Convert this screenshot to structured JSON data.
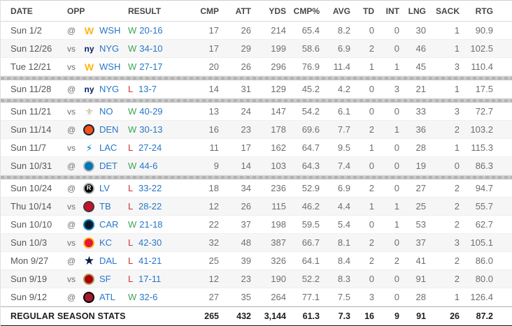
{
  "colors": {
    "link": "#2677c8",
    "win": "#3fa45c",
    "loss": "#cf3337",
    "alt_row": "#f6f6f6",
    "separator": "#b3b3b3"
  },
  "table": {
    "columns": [
      {
        "key": "date",
        "label": "DATE"
      },
      {
        "key": "opp",
        "label": "OPP"
      },
      {
        "key": "result",
        "label": "RESULT"
      },
      {
        "key": "cmp",
        "label": "CMP"
      },
      {
        "key": "att",
        "label": "ATT"
      },
      {
        "key": "yds",
        "label": "YDS"
      },
      {
        "key": "cmppct",
        "label": "CMP%"
      },
      {
        "key": "avg",
        "label": "AVG"
      },
      {
        "key": "td",
        "label": "TD"
      },
      {
        "key": "int",
        "label": "INT"
      },
      {
        "key": "lng",
        "label": "LNG"
      },
      {
        "key": "sack",
        "label": "SACK"
      },
      {
        "key": "rtg",
        "label": "RTG"
      }
    ],
    "sections": [
      {
        "rows": [
          {
            "date": "Sun 1/2",
            "at_vs": "@",
            "team": "WSH",
            "logo": {
              "glyph": "W",
              "fg": "#FFB612"
            },
            "result": "W",
            "score": "20-16",
            "stats": [
              "17",
              "26",
              "214",
              "65.4",
              "8.2",
              "0",
              "0",
              "30",
              "1",
              "90.9"
            ]
          },
          {
            "date": "Sun 12/26",
            "at_vs": "vs",
            "team": "NYG",
            "logo": {
              "glyph": "ny",
              "fg": "#0B2265"
            },
            "result": "W",
            "score": "34-10",
            "stats": [
              "17",
              "29",
              "199",
              "58.6",
              "6.9",
              "2",
              "0",
              "46",
              "1",
              "102.5"
            ]
          },
          {
            "date": "Tue 12/21",
            "at_vs": "vs",
            "team": "WSH",
            "logo": {
              "glyph": "W",
              "fg": "#FFB612"
            },
            "result": "W",
            "score": "27-17",
            "stats": [
              "20",
              "26",
              "296",
              "76.9",
              "11.4",
              "1",
              "1",
              "45",
              "3",
              "110.4"
            ]
          }
        ]
      },
      {
        "rows": [
          {
            "date": "Sun 11/28",
            "at_vs": "@",
            "team": "NYG",
            "logo": {
              "glyph": "ny",
              "fg": "#0B2265"
            },
            "result": "L",
            "score": "13-7",
            "stats": [
              "14",
              "31",
              "129",
              "45.2",
              "4.2",
              "0",
              "3",
              "21",
              "1",
              "17.5"
            ]
          }
        ]
      },
      {
        "rows": [
          {
            "date": "Sun 11/21",
            "at_vs": "vs",
            "team": "NO",
            "logo": {
              "glyph": "⚜",
              "fg": "#C8B47E"
            },
            "result": "W",
            "score": "40-29",
            "stats": [
              "13",
              "24",
              "147",
              "54.2",
              "6.1",
              "0",
              "0",
              "33",
              "3",
              "72.7"
            ]
          },
          {
            "date": "Sun 11/14",
            "at_vs": "@",
            "team": "DEN",
            "logo": {
              "bg": "#FB4F14",
              "border": "#0A2343"
            },
            "result": "W",
            "score": "30-13",
            "stats": [
              "16",
              "23",
              "178",
              "69.6",
              "7.7",
              "2",
              "1",
              "36",
              "2",
              "103.2"
            ]
          },
          {
            "date": "Sun 11/7",
            "at_vs": "vs",
            "team": "LAC",
            "logo": {
              "glyph": "⚡",
              "fg": "#0080C6"
            },
            "result": "L",
            "score": "27-24",
            "stats": [
              "11",
              "17",
              "162",
              "64.7",
              "9.5",
              "1",
              "0",
              "28",
              "1",
              "115.3"
            ]
          },
          {
            "date": "Sun 10/31",
            "at_vs": "@",
            "team": "DET",
            "logo": {
              "bg": "#0076B6",
              "border": "#B0B7BC"
            },
            "result": "W",
            "score": "44-6",
            "stats": [
              "9",
              "14",
              "103",
              "64.3",
              "7.4",
              "0",
              "0",
              "19",
              "0",
              "86.3"
            ]
          }
        ]
      },
      {
        "rows": [
          {
            "date": "Sun 10/24",
            "at_vs": "@",
            "team": "LV",
            "logo": {
              "bg": "#000000",
              "border": "#A5ACAF",
              "glyph": "R"
            },
            "result": "L",
            "score": "33-22",
            "stats": [
              "18",
              "34",
              "236",
              "52.9",
              "6.9",
              "2",
              "0",
              "27",
              "2",
              "94.7"
            ]
          },
          {
            "date": "Thu 10/14",
            "at_vs": "vs",
            "team": "TB",
            "logo": {
              "bg": "#C8102E",
              "border": "#3E3A35"
            },
            "result": "L",
            "score": "28-22",
            "stats": [
              "12",
              "26",
              "115",
              "46.2",
              "4.4",
              "1",
              "1",
              "25",
              "2",
              "55.7"
            ]
          },
          {
            "date": "Sun 10/10",
            "at_vs": "@",
            "team": "CAR",
            "logo": {
              "bg": "#101820",
              "border": "#0085CA"
            },
            "result": "W",
            "score": "21-18",
            "stats": [
              "22",
              "37",
              "198",
              "59.5",
              "5.4",
              "0",
              "1",
              "53",
              "2",
              "62.7"
            ]
          },
          {
            "date": "Sun 10/3",
            "at_vs": "vs",
            "team": "KC",
            "logo": {
              "bg": "#E31837",
              "border": "#FFB81C"
            },
            "result": "L",
            "score": "42-30",
            "stats": [
              "32",
              "48",
              "387",
              "66.7",
              "8.1",
              "2",
              "0",
              "37",
              "3",
              "105.1"
            ]
          },
          {
            "date": "Mon 9/27",
            "at_vs": "@",
            "team": "DAL",
            "logo": {
              "glyph": "★",
              "fg": "#041E42"
            },
            "result": "L",
            "score": "41-21",
            "stats": [
              "25",
              "39",
              "326",
              "64.1",
              "8.4",
              "2",
              "2",
              "41",
              "2",
              "86.0"
            ]
          },
          {
            "date": "Sun 9/19",
            "at_vs": "vs",
            "team": "SF",
            "logo": {
              "bg": "#AA0000",
              "border": "#B3995D"
            },
            "result": "L",
            "score": "17-11",
            "stats": [
              "12",
              "23",
              "190",
              "52.2",
              "8.3",
              "0",
              "0",
              "91",
              "2",
              "80.0"
            ]
          },
          {
            "date": "Sun 9/12",
            "at_vs": "@",
            "team": "ATL",
            "logo": {
              "bg": "#A71930",
              "border": "#000000"
            },
            "result": "W",
            "score": "32-6",
            "stats": [
              "27",
              "35",
              "264",
              "77.1",
              "7.5",
              "3",
              "0",
              "28",
              "1",
              "126.4"
            ]
          }
        ]
      }
    ],
    "footer": {
      "label": "REGULAR SEASON STATS",
      "stats": [
        "265",
        "432",
        "3,144",
        "61.3",
        "7.3",
        "16",
        "9",
        "91",
        "26",
        "87.2"
      ]
    }
  }
}
